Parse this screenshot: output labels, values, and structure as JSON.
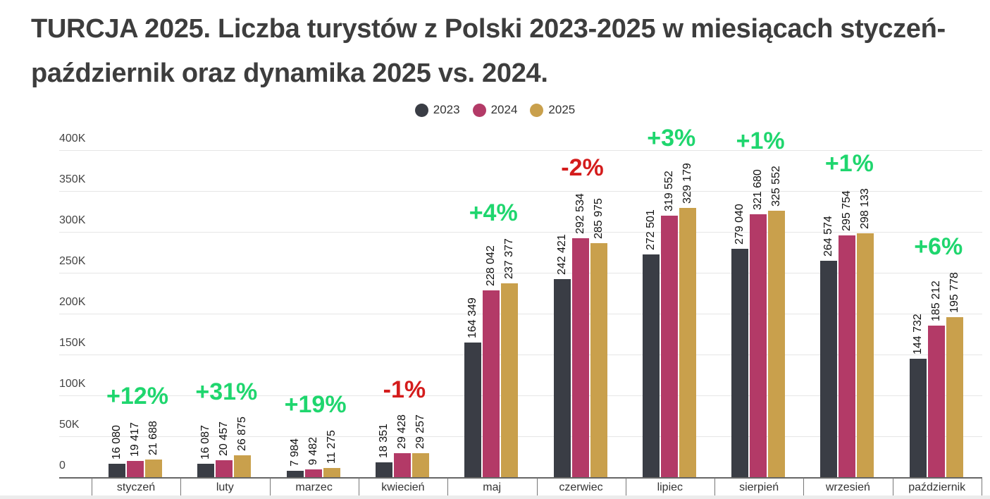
{
  "title": "TURCJA 2025. Liczba turystów z Polski 2023-2025 w miesiącach styczeń-październik oraz dynamika 2025 vs. 2024.",
  "colors": {
    "2023": "#3a3d45",
    "2024": "#b33a67",
    "2025": "#c9a04c",
    "positive": "#1fd66e",
    "negative": "#d41c1c"
  },
  "legend": [
    {
      "label": "2023",
      "color": "#3a3d45"
    },
    {
      "label": "2024",
      "color": "#b33a67"
    },
    {
      "label": "2025",
      "color": "#c9a04c"
    }
  ],
  "y_axis": {
    "ticks": [
      "0",
      "50K",
      "100K",
      "150K",
      "200K",
      "250K",
      "300K",
      "350K",
      "400K"
    ]
  },
  "chart_data": {
    "type": "bar",
    "title": "TURCJA 2025. Liczba turystów z Polski 2023-2025 w miesiącach styczeń-październik oraz dynamika 2025 vs. 2024.",
    "xlabel": "",
    "ylabel": "",
    "ylim": [
      0,
      400000
    ],
    "grid": true,
    "legend_position": "top",
    "categories": [
      "styczeń",
      "luty",
      "marzec",
      "kwiecień",
      "maj",
      "czerwiec",
      "lipiec",
      "sierpień",
      "wrzesień",
      "październik"
    ],
    "series": [
      {
        "name": "2023",
        "values": [
          16080,
          16087,
          7984,
          18351,
          164349,
          242421,
          272501,
          279040,
          264574,
          144732
        ]
      },
      {
        "name": "2024",
        "values": [
          19417,
          20457,
          9482,
          29428,
          228042,
          292534,
          319552,
          321680,
          295754,
          185212
        ]
      },
      {
        "name": "2025",
        "values": [
          21688,
          26875,
          11275,
          29257,
          237377,
          285975,
          329179,
          325552,
          298133,
          195778
        ]
      }
    ],
    "value_labels": {
      "2023": [
        "16 080",
        "16 087",
        "7 984",
        "18 351",
        "164 349",
        "242 421",
        "272 501",
        "279 040",
        "264 574",
        "144 732"
      ],
      "2024": [
        "19 417",
        "20 457",
        "9 482",
        "29 428",
        "228 042",
        "292 534",
        "319 552",
        "321 680",
        "295 754",
        "185 212"
      ],
      "2025": [
        "21 688",
        "26 875",
        "11 275",
        "29 257",
        "237 377",
        "285 975",
        "329 179",
        "325 552",
        "298 133",
        "195 778"
      ]
    },
    "annotations": [
      "+12%",
      "+31%",
      "+19%",
      "-1%",
      "+4%",
      "-2%",
      "+3%",
      "+1%",
      "+1%",
      "+6%"
    ],
    "annotation_label": "dynamika 2025 vs. 2024"
  }
}
